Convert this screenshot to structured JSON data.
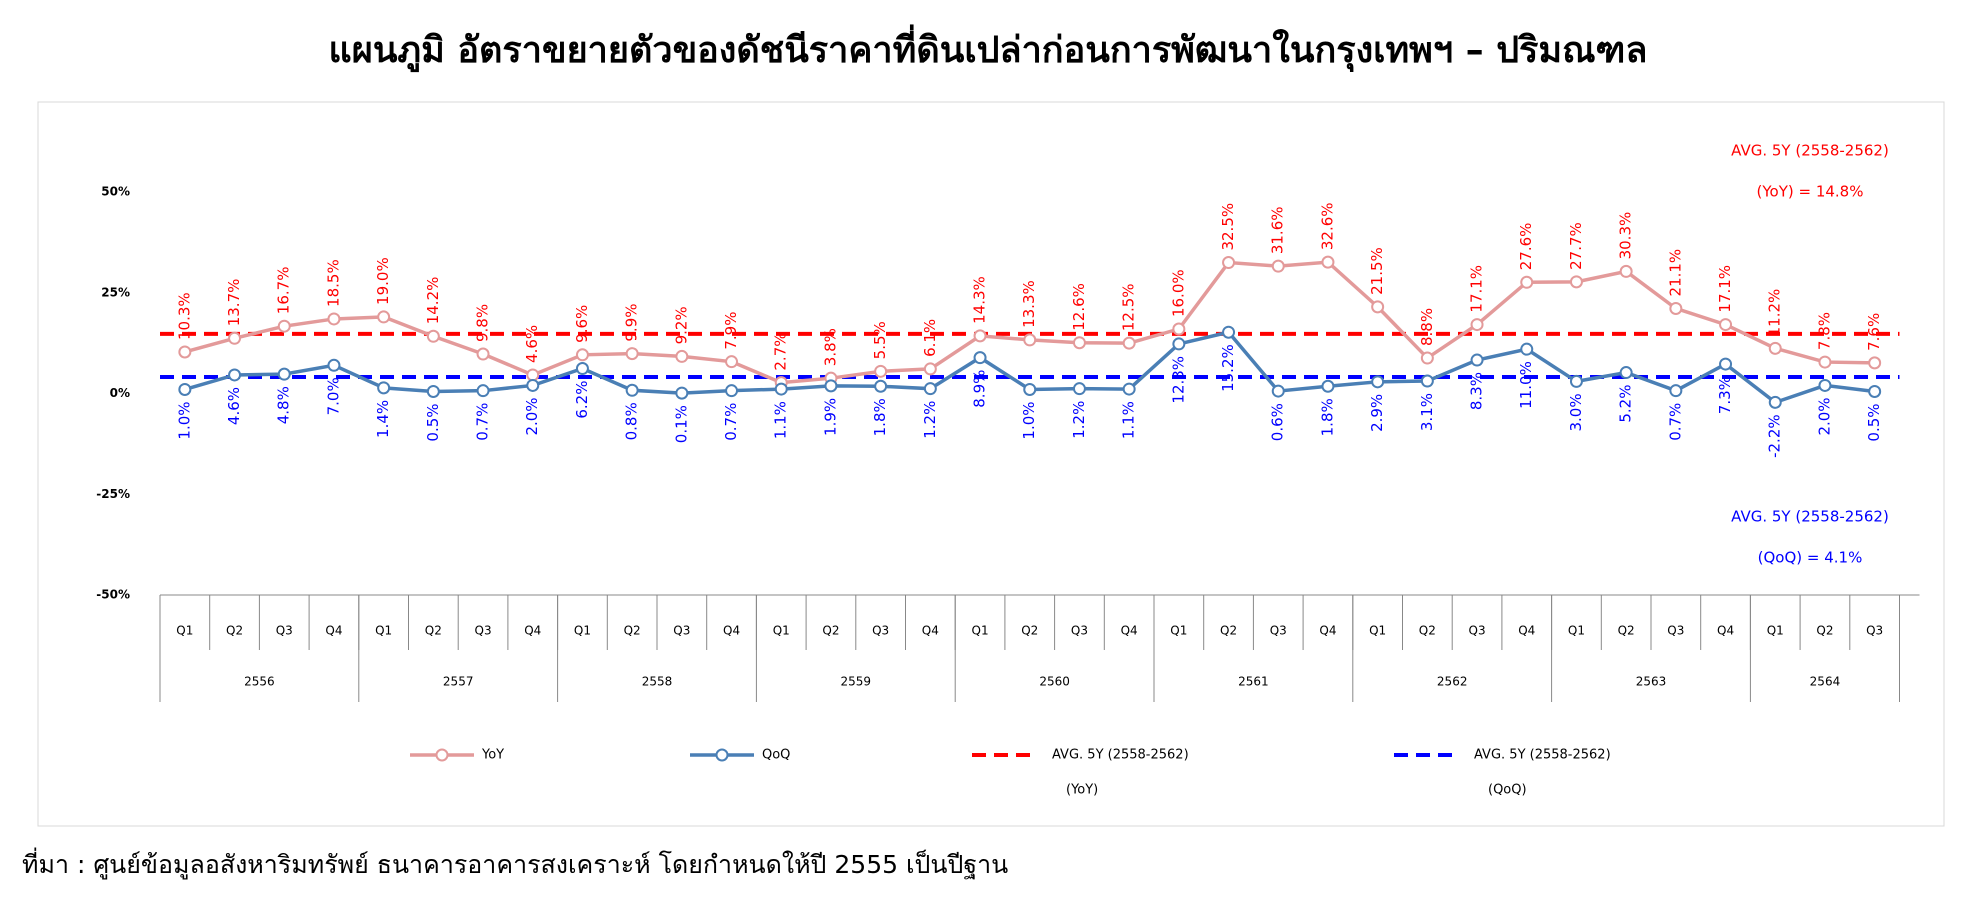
{
  "chart_data": {
    "type": "line",
    "title": "แผนภูมิ อัตราขยายตัวของดัชนีราคาที่ดินเปล่าก่อนการพัฒนาในกรุงเทพฯ – ปริมณฑล",
    "source": "ที่มา : ศูนย์ข้อมูลอสังหาริมทรัพย์ ธนาคารอาคารสงเคราะห์  โดยกำหนดให้ปี 2555 เป็นปีฐาน",
    "categories": [
      [
        "2556",
        "Q1"
      ],
      [
        "2556",
        "Q2"
      ],
      [
        "2556",
        "Q3"
      ],
      [
        "2556",
        "Q4"
      ],
      [
        "2557",
        "Q1"
      ],
      [
        "2557",
        "Q2"
      ],
      [
        "2557",
        "Q3"
      ],
      [
        "2557",
        "Q4"
      ],
      [
        "2558",
        "Q1"
      ],
      [
        "2558",
        "Q2"
      ],
      [
        "2558",
        "Q3"
      ],
      [
        "2558",
        "Q4"
      ],
      [
        "2559",
        "Q1"
      ],
      [
        "2559",
        "Q2"
      ],
      [
        "2559",
        "Q3"
      ],
      [
        "2559",
        "Q4"
      ],
      [
        "2560",
        "Q1"
      ],
      [
        "2560",
        "Q2"
      ],
      [
        "2560",
        "Q3"
      ],
      [
        "2560",
        "Q4"
      ],
      [
        "2561",
        "Q1"
      ],
      [
        "2561",
        "Q2"
      ],
      [
        "2561",
        "Q3"
      ],
      [
        "2561",
        "Q4"
      ],
      [
        "2562",
        "Q1"
      ],
      [
        "2562",
        "Q2"
      ],
      [
        "2562",
        "Q3"
      ],
      [
        "2562",
        "Q4"
      ],
      [
        "2563",
        "Q1"
      ],
      [
        "2563",
        "Q2"
      ],
      [
        "2563",
        "Q3"
      ],
      [
        "2563",
        "Q4"
      ],
      [
        "2564",
        "Q1"
      ],
      [
        "2564",
        "Q2"
      ],
      [
        "2564",
        "Q3"
      ]
    ],
    "ylim": [
      -50,
      50
    ],
    "yticks": [
      {
        "value": -50,
        "label": "-50%"
      },
      {
        "value": -25,
        "label": "-25%"
      },
      {
        "value": 0,
        "label": "0%"
      },
      {
        "value": 25,
        "label": "25%"
      },
      {
        "value": 50,
        "label": "50%"
      }
    ],
    "grid": false,
    "series": [
      {
        "name": "YoY",
        "color": "#e39a9a",
        "label_color": "#ff0000",
        "label_side": "above",
        "values": [
          10.3,
          13.7,
          16.7,
          18.5,
          19.0,
          14.2,
          9.8,
          4.6,
          9.6,
          9.9,
          9.2,
          7.9,
          2.7,
          3.8,
          5.5,
          6.1,
          14.3,
          13.3,
          12.6,
          12.5,
          16.0,
          32.5,
          31.6,
          32.6,
          21.5,
          8.8,
          17.1,
          27.6,
          27.7,
          30.3,
          21.1,
          17.1,
          11.2,
          7.8,
          7.6
        ],
        "value_labels": [
          "10.3%",
          "13.7%",
          "16.7%",
          "18.5%",
          "19.0%",
          "14.2%",
          "9.8%",
          "4.6%",
          "9.6%",
          "9.9%",
          "9.2%",
          "7.9%",
          "2.7%",
          "3.8%",
          "5.5%",
          "6.1%",
          "14.3%",
          "13.3%",
          "12.6%",
          "12.5%",
          "16.0%",
          "32.5%",
          "31.6%",
          "32.6%",
          "21.5%",
          "8.8%",
          "17.1%",
          "27.6%",
          "27.7%",
          "30.3%",
          "21.1%",
          "17.1%",
          "11.2%",
          "7.8%",
          "7.6%"
        ]
      },
      {
        "name": "QoQ",
        "color": "#4a7fb5",
        "label_color": "#0000ff",
        "label_side": "below",
        "values": [
          1.0,
          4.6,
          4.8,
          7.0,
          1.4,
          0.5,
          0.7,
          2.0,
          6.2,
          0.8,
          0.1,
          0.7,
          1.1,
          1.9,
          1.8,
          1.2,
          8.9,
          1.0,
          1.2,
          1.1,
          12.3,
          15.2,
          0.6,
          1.8,
          2.9,
          3.1,
          8.3,
          11.0,
          3.0,
          5.2,
          0.7,
          7.3,
          -2.2,
          2.0,
          0.5
        ],
        "value_labels": [
          "1.0%",
          "4.6%",
          "4.8%",
          "7.0%",
          "1.4%",
          "0.5%",
          "0.7%",
          "2.0%",
          "6.2%",
          "0.8%",
          "0.1%",
          "0.7%",
          "1.1%",
          "1.9%",
          "1.8%",
          "1.2%",
          "8.9%",
          "1.0%",
          "1.2%",
          "1.1%",
          "12.3%",
          "15.2%",
          "0.6%",
          "1.8%",
          "2.9%",
          "3.1%",
          "8.3%",
          "11.0%",
          "3.0%",
          "5.2%",
          "0.7%",
          "7.3%",
          "-2.2%",
          "2.0%",
          "0.5%"
        ]
      }
    ],
    "reference_lines": [
      {
        "name": "AVG. 5Y (2558-2562)",
        "name_sub": "(YoY)",
        "color": "#ff0000",
        "value": 14.8,
        "annotation": [
          "AVG. 5Y (2558-2562)",
          "(YoY) = 14.8%"
        ]
      },
      {
        "name": "AVG. 5Y (2558-2562)",
        "name_sub": "(QoQ)",
        "color": "#0000ff",
        "value": 4.1,
        "annotation": [
          "AVG. 5Y (2558-2562)",
          "(QoQ) = 4.1%"
        ]
      }
    ]
  }
}
